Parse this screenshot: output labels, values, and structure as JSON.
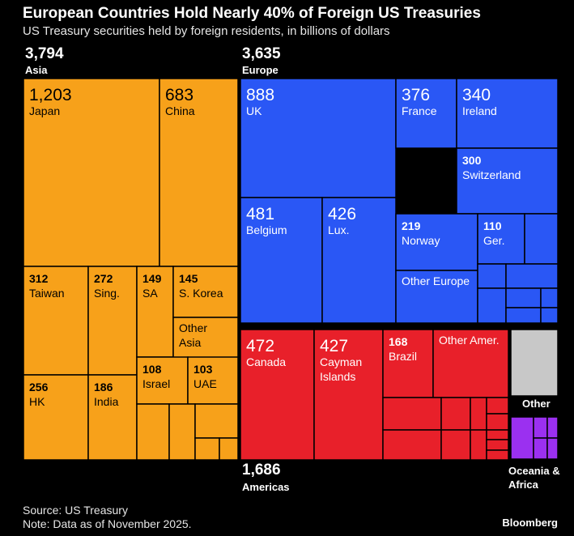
{
  "title": "European Countries Hold Nearly 40% of Foreign US Treasuries",
  "subtitle": "US Treasury securities held by foreign residents, in billions of dollars",
  "source": "Source: US Treasury",
  "note": "Note: Data as of November 2025.",
  "brand": "Bloomberg",
  "colors": {
    "background": "#000000",
    "asia": "#F7A11A",
    "europe": "#2A57F5",
    "americas": "#E8202A",
    "other": "#C8C8C8",
    "oceania_africa": "#9B30F0",
    "dark_text": "#000000",
    "light_text": "#FFFFFF"
  },
  "chart_data": {
    "type": "treemap",
    "title": "European Countries Hold Nearly 40% of Foreign US Treasuries",
    "unit": "billions of dollars",
    "groups": [
      {
        "id": "asia",
        "name": "Asia",
        "total": "3,794",
        "items": [
          {
            "name": "Japan",
            "value": "1,203"
          },
          {
            "name": "China",
            "value": "683"
          },
          {
            "name": "Taiwan",
            "value": "312"
          },
          {
            "name": "Sing.",
            "value": "272"
          },
          {
            "name": "SA",
            "value": "149"
          },
          {
            "name": "S. Korea",
            "value": "145"
          },
          {
            "name": "Other Asia",
            "value": ""
          },
          {
            "name": "HK",
            "value": "256"
          },
          {
            "name": "India",
            "value": "186"
          },
          {
            "name": "Israel",
            "value": "108"
          },
          {
            "name": "UAE",
            "value": "103"
          }
        ]
      },
      {
        "id": "europe",
        "name": "Europe",
        "total": "3,635",
        "items": [
          {
            "name": "UK",
            "value": "888"
          },
          {
            "name": "France",
            "value": "376"
          },
          {
            "name": "Ireland",
            "value": "340"
          },
          {
            "name": "Switzerland",
            "value": "300"
          },
          {
            "name": "Belgium",
            "value": "481"
          },
          {
            "name": "Lux.",
            "value": "426"
          },
          {
            "name": "Norway",
            "value": "219"
          },
          {
            "name": "Ger.",
            "value": "110"
          },
          {
            "name": "Other Europe",
            "value": ""
          }
        ]
      },
      {
        "id": "americas",
        "name": "Americas",
        "total": "1,686",
        "items": [
          {
            "name": "Canada",
            "value": "472"
          },
          {
            "name": "Cayman Islands",
            "value": "427"
          },
          {
            "name": "Brazil",
            "value": "168"
          },
          {
            "name": "Other Amer.",
            "value": ""
          }
        ]
      },
      {
        "id": "other",
        "name": "Other",
        "total": "",
        "items": []
      },
      {
        "id": "oceania_africa",
        "name": "Oceania & Africa",
        "total": "",
        "items": []
      }
    ]
  }
}
